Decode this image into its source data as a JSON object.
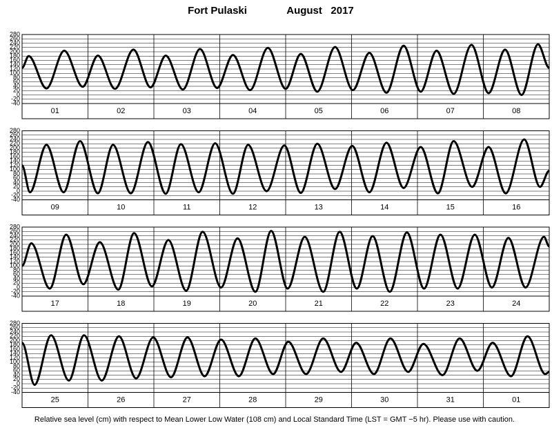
{
  "title": "Fort Pulaski",
  "period": "August   2017",
  "note": "Relative sea level (cm) with respect to Mean Lower Low Water (108 cm) and Local Standard Time (LST = GMT −5 hr). Please use with caution.",
  "chart_data": [
    {
      "type": "line",
      "categories": [
        "01",
        "02",
        "03",
        "04",
        "05",
        "06",
        "07",
        "08"
      ],
      "xlim": [
        0,
        8
      ],
      "ylim": [
        -40,
        280
      ],
      "yticks": [
        -40,
        -20,
        0,
        20,
        40,
        60,
        80,
        100,
        120,
        140,
        160,
        180,
        200,
        220,
        240,
        260,
        280
      ],
      "grid": true,
      "color": "#000000",
      "x": [
        0,
        0.1,
        0.37,
        0.64,
        0.92,
        1.15,
        1.41,
        1.69,
        1.95,
        2.18,
        2.44,
        2.7,
        2.96,
        3.2,
        3.46,
        3.73,
        4.0,
        4.23,
        4.48,
        4.75,
        5.02,
        5.27,
        5.53,
        5.79,
        6.05,
        6.29,
        6.55,
        6.82,
        7.08,
        7.33,
        7.58,
        7.83,
        8.0
      ],
      "values": [
        125,
        180,
        30,
        205,
        38,
        182,
        28,
        210,
        35,
        182,
        25,
        213,
        32,
        185,
        22,
        218,
        28,
        190,
        15,
        222,
        22,
        195,
        10,
        228,
        15,
        205,
        5,
        232,
        8,
        210,
        0,
        235,
        125
      ]
    },
    {
      "type": "line",
      "categories": [
        "09",
        "10",
        "11",
        "12",
        "13",
        "14",
        "15",
        "16"
      ],
      "xlim": [
        0,
        8
      ],
      "ylim": [
        -40,
        280
      ],
      "yticks": [
        -40,
        -20,
        0,
        20,
        40,
        60,
        80,
        100,
        120,
        140,
        160,
        180,
        200,
        220,
        240,
        260,
        280
      ],
      "grid": true,
      "color": "#000000",
      "x": [
        0,
        0.12,
        0.37,
        0.63,
        0.88,
        1.15,
        1.38,
        1.65,
        1.91,
        2.18,
        2.41,
        2.68,
        2.93,
        3.2,
        3.43,
        3.71,
        3.98,
        4.23,
        4.48,
        4.75,
        5.01,
        5.27,
        5.53,
        5.79,
        6.05,
        6.31,
        6.55,
        6.83,
        7.08,
        7.34,
        7.62,
        7.86,
        8.0
      ],
      "values": [
        120,
        -5,
        215,
        -5,
        232,
        -10,
        215,
        -10,
        228,
        -12,
        218,
        -5,
        222,
        -12,
        215,
        0,
        212,
        -8,
        220,
        10,
        210,
        -5,
        225,
        15,
        205,
        -10,
        232,
        20,
        205,
        -10,
        240,
        20,
        95
      ]
    },
    {
      "type": "line",
      "categories": [
        "17",
        "18",
        "19",
        "20",
        "21",
        "22",
        "23",
        "24"
      ],
      "xlim": [
        0,
        8
      ],
      "ylim": [
        -40,
        280
      ],
      "yticks": [
        -40,
        -20,
        0,
        20,
        40,
        60,
        80,
        100,
        120,
        140,
        160,
        180,
        200,
        220,
        240,
        260,
        280
      ],
      "grid": true,
      "color": "#000000",
      "x": [
        0,
        0.14,
        0.42,
        0.67,
        0.93,
        1.18,
        1.46,
        1.7,
        1.97,
        2.22,
        2.49,
        2.74,
        3.02,
        3.27,
        3.54,
        3.78,
        4.03,
        4.29,
        4.57,
        4.82,
        5.08,
        5.32,
        5.58,
        5.84,
        6.1,
        6.35,
        6.61,
        6.87,
        7.13,
        7.38,
        7.64,
        7.92,
        8.0
      ],
      "values": [
        100,
        205,
        -5,
        245,
        15,
        210,
        -10,
        252,
        5,
        220,
        -15,
        258,
        0,
        228,
        -20,
        262,
        -5,
        235,
        -20,
        258,
        -5,
        238,
        -20,
        255,
        -5,
        245,
        -5,
        245,
        0,
        230,
        0,
        235,
        190
      ]
    },
    {
      "type": "line",
      "categories": [
        "25",
        "26",
        "27",
        "28",
        "29",
        "30",
        "31",
        "01"
      ],
      "xlim": [
        0,
        8
      ],
      "ylim": [
        -40,
        280
      ],
      "yticks": [
        -40,
        -20,
        0,
        20,
        40,
        60,
        80,
        100,
        120,
        140,
        160,
        180,
        200,
        220,
        240,
        260,
        280
      ],
      "grid": true,
      "color": "#000000",
      "x": [
        0,
        0.19,
        0.44,
        0.71,
        0.94,
        1.21,
        1.47,
        1.73,
        1.99,
        2.26,
        2.51,
        2.77,
        3.02,
        3.29,
        3.54,
        3.81,
        4.04,
        4.31,
        4.57,
        4.84,
        5.07,
        5.34,
        5.59,
        5.86,
        6.09,
        6.38,
        6.64,
        6.91,
        7.14,
        7.42,
        7.67,
        7.94,
        8.0
      ],
      "values": [
        190,
        -5,
        225,
        15,
        225,
        15,
        220,
        25,
        215,
        30,
        215,
        35,
        205,
        35,
        210,
        45,
        195,
        45,
        210,
        55,
        190,
        45,
        210,
        55,
        185,
        40,
        210,
        60,
        190,
        35,
        220,
        45,
        55
      ]
    }
  ]
}
